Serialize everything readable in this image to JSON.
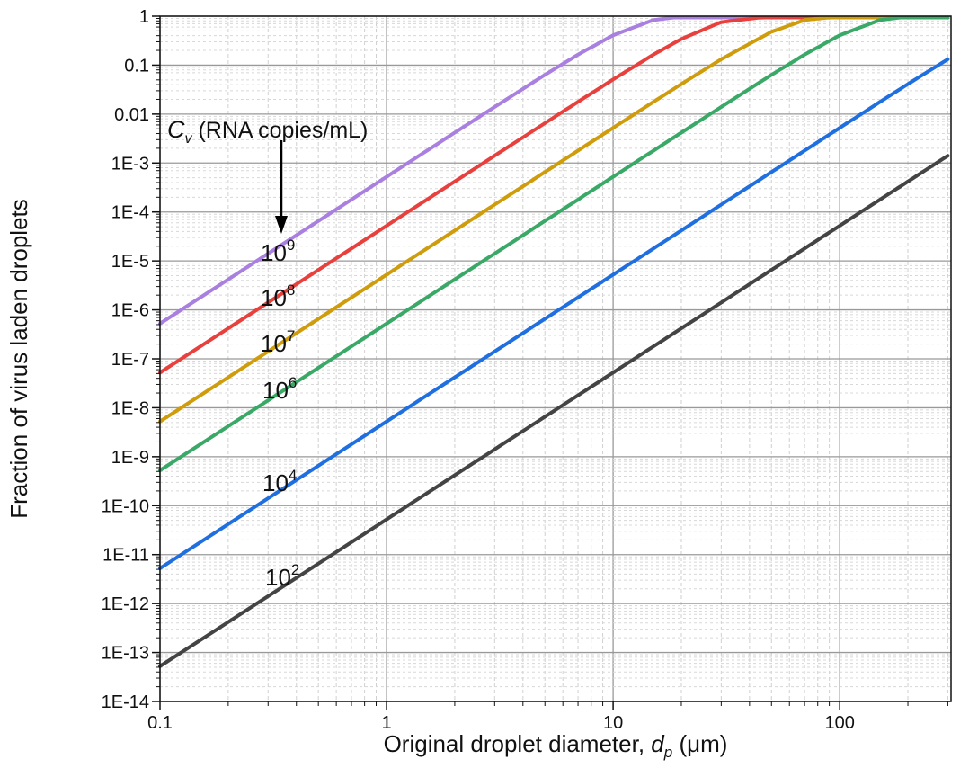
{
  "chart_data": {
    "type": "line",
    "title": "",
    "xlabel": "Original droplet diameter, ",
    "xlabel_symbol": "d",
    "xlabel_sub": "p",
    "xlabel_unit": " (μm)",
    "ylabel": "Fraction of virus laden droplets",
    "xscale": "log",
    "yscale": "log",
    "xlim": [
      0.1,
      310
    ],
    "ylim": [
      1e-14,
      1
    ],
    "grid": true,
    "x_ticks": [
      {
        "v": 0.1,
        "label": "0.1"
      },
      {
        "v": 1,
        "label": "1"
      },
      {
        "v": 10,
        "label": "10"
      },
      {
        "v": 100,
        "label": "100"
      }
    ],
    "y_ticks": [
      {
        "v": 1,
        "label": "1"
      },
      {
        "v": 0.1,
        "label": "0.1"
      },
      {
        "v": 0.01,
        "label": "0.01"
      },
      {
        "v": 0.001,
        "label": "1E-3"
      },
      {
        "v": 0.0001,
        "label": "1E-4"
      },
      {
        "v": 1e-05,
        "label": "1E-5"
      },
      {
        "v": 1e-06,
        "label": "1E-6"
      },
      {
        "v": 1e-07,
        "label": "1E-7"
      },
      {
        "v": 1e-08,
        "label": "1E-8"
      },
      {
        "v": 1e-09,
        "label": "1E-9"
      },
      {
        "v": 1e-10,
        "label": "1E-10"
      },
      {
        "v": 1e-11,
        "label": "1E-11"
      },
      {
        "v": 1e-12,
        "label": "1E-12"
      },
      {
        "v": 1e-13,
        "label": "1E-13"
      },
      {
        "v": 1e-14,
        "label": "1E-14"
      }
    ],
    "annotation": {
      "symbol": "C",
      "sub": "v",
      "text": " (RNA copies/mL)"
    },
    "x": [
      0.1,
      1,
      2,
      3,
      5,
      7,
      10,
      15,
      20,
      30,
      50,
      70,
      100,
      150,
      200,
      300
    ],
    "series": [
      {
        "name_base": "10",
        "name_exp": "9",
        "color": "#a97fe0",
        "values": [
          5.24e-07,
          0.0005235,
          0.00418,
          0.014,
          0.0634,
          0.164,
          0.408,
          0.829,
          0.985,
          1,
          1,
          1,
          1,
          1,
          1,
          1
        ]
      },
      {
        "name_base": "10",
        "name_exp": "8",
        "color": "#e8413d",
        "values": [
          5.24e-08,
          5.24e-05,
          0.000419,
          0.001414,
          0.00652,
          0.0178,
          0.051,
          0.162,
          0.342,
          0.757,
          0.9986,
          1,
          1,
          1,
          1,
          1
        ]
      },
      {
        "name_base": "10",
        "name_exp": "7",
        "color": "#cf9c0c",
        "values": [
          5.24e-09,
          5.24e-06,
          4.19e-05,
          0.0001414,
          0.000654,
          0.001796,
          0.00522,
          0.01752,
          0.041,
          0.132,
          0.48,
          0.834,
          0.9947,
          1,
          1,
          1
        ]
      },
      {
        "name_base": "10",
        "name_exp": "6",
        "color": "#3aa867",
        "values": [
          5.24e-10,
          5.24e-07,
          4.19e-06,
          1.414e-05,
          6.55e-05,
          0.0001796,
          0.000524,
          0.001765,
          0.00418,
          0.014,
          0.0634,
          0.164,
          0.408,
          0.829,
          0.985,
          1
        ]
      },
      {
        "name_base": "10",
        "name_exp": "4",
        "color": "#1f6fe0",
        "values": [
          5.24e-12,
          5.24e-09,
          4.19e-08,
          1.414e-07,
          6.55e-07,
          1.796e-06,
          5.24e-06,
          1.767e-05,
          4.19e-05,
          0.0001414,
          0.000654,
          0.001794,
          0.00522,
          0.0175,
          0.041,
          0.132
        ]
      },
      {
        "name_base": "10",
        "name_exp": "2",
        "color": "#444444",
        "values": [
          5.24e-14,
          5.24e-11,
          4.19e-10,
          1.414e-09,
          6.55e-09,
          1.796e-08,
          5.24e-08,
          1.767e-07,
          4.19e-07,
          1.414e-06,
          6.55e-06,
          1.796e-05,
          5.24e-05,
          0.0001767,
          0.000419,
          0.00141
        ]
      }
    ]
  }
}
